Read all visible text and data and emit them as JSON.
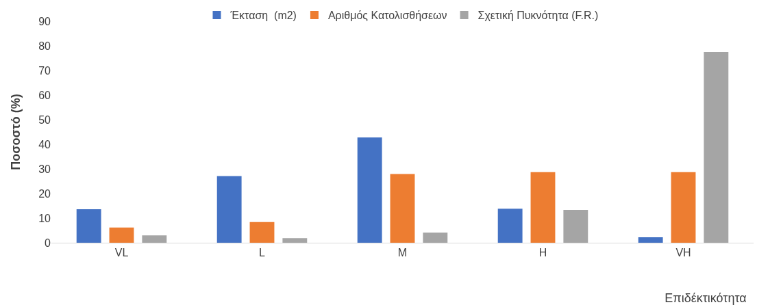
{
  "chart_data": {
    "type": "bar",
    "ylabel": "Ποσοστό (%)",
    "xlabel": "Επιδέκτικότητα",
    "categories": [
      "VL",
      "L",
      "M",
      "H",
      "VH"
    ],
    "series": [
      {
        "name": "Έκταση  (m2)",
        "color": "#4472c4",
        "values": [
          13.6,
          27.1,
          42.8,
          13.8,
          2.2
        ]
      },
      {
        "name": "Αριθμός Κατολισθήσεων",
        "color": "#ed7d31",
        "values": [
          6.2,
          8.4,
          27.9,
          28.7,
          28.7
        ]
      },
      {
        "name": "Σχετική Πυκνότητα (F.R.)",
        "color": "#a5a5a5",
        "values": [
          3.0,
          1.9,
          4.1,
          13.3,
          77.5
        ]
      }
    ],
    "ylim": [
      0,
      90
    ],
    "yticks": [
      0,
      10,
      20,
      30,
      40,
      50,
      60,
      70,
      80,
      90
    ],
    "grid": false,
    "legend": "top"
  }
}
